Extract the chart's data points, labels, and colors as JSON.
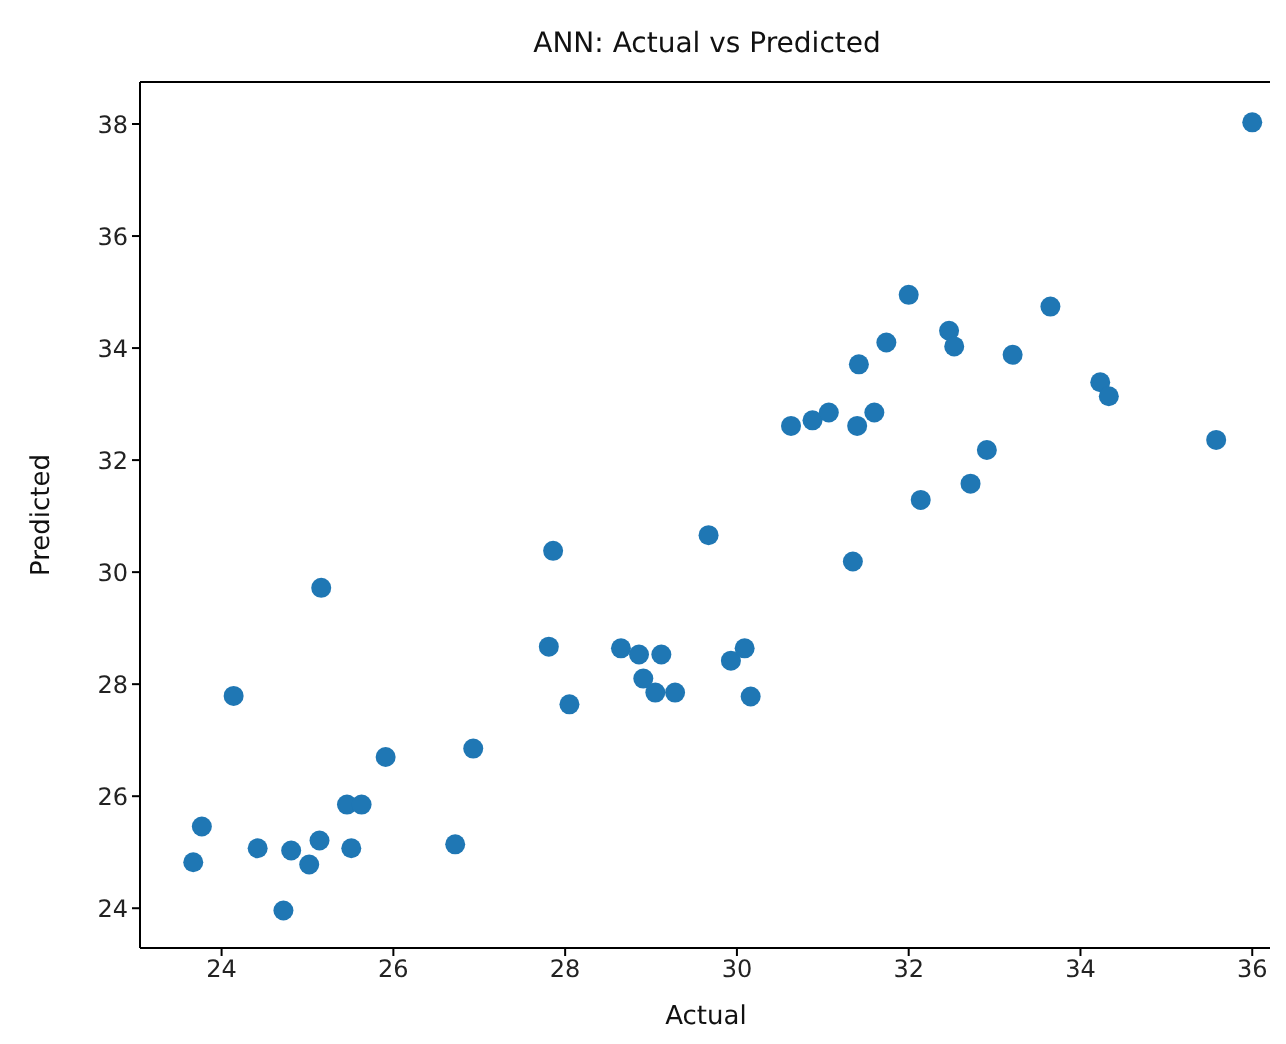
{
  "chart_data": {
    "type": "scatter",
    "title": "ANN: Actual vs Predicted",
    "xlabel": "Actual",
    "ylabel": "Predicted",
    "x": [
      23.67,
      23.77,
      24.14,
      24.42,
      24.72,
      24.81,
      25.02,
      25.14,
      25.16,
      25.46,
      25.63,
      25.51,
      25.91,
      26.72,
      26.93,
      27.81,
      27.86,
      28.05,
      28.65,
      28.86,
      29.12,
      28.91,
      29.05,
      29.28,
      29.67,
      29.93,
      30.09,
      30.16,
      30.63,
      30.88,
      31.07,
      31.35,
      31.42,
      31.4,
      31.6,
      31.74,
      32.0,
      32.14,
      32.47,
      32.53,
      32.72,
      32.91,
      33.21,
      33.65,
      34.23,
      34.33,
      35.58,
      36.0
    ],
    "series": [
      {
        "color": "#1f77b4",
        "values": [
          24.82,
          25.46,
          27.79,
          25.07,
          23.96,
          25.03,
          24.78,
          25.21,
          29.72,
          25.85,
          25.85,
          25.07,
          26.7,
          25.14,
          26.85,
          28.67,
          30.38,
          27.64,
          28.64,
          28.53,
          28.53,
          28.1,
          27.85,
          27.85,
          30.66,
          28.42,
          28.64,
          27.78,
          32.61,
          32.71,
          32.85,
          30.19,
          33.71,
          32.61,
          32.85,
          34.1,
          34.95,
          31.29,
          34.31,
          34.03,
          31.58,
          32.18,
          33.88,
          34.74,
          33.39,
          33.14,
          32.36,
          38.03
        ]
      }
    ],
    "xlim": [
      23.05,
      36.23
    ],
    "xticks": [
      24,
      26,
      28,
      30,
      32,
      34,
      36
    ],
    "ylim": [
      23.29,
      38.75
    ],
    "yticks": [
      24,
      26,
      28,
      30,
      32,
      34,
      36,
      38
    ],
    "marker": "circle",
    "grid": false,
    "legend": false
  }
}
